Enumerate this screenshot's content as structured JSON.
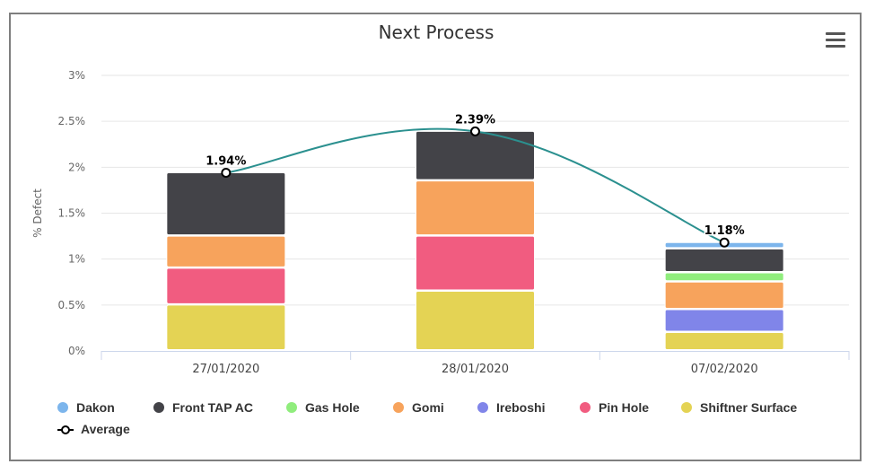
{
  "chart_data": {
    "type": "bar",
    "stacked": true,
    "title": "Next Process",
    "ylabel": "% Defect",
    "xlabel": "",
    "categories": [
      "27/01/2020",
      "28/01/2020",
      "07/02/2020"
    ],
    "y_ticks": [
      "0%",
      "0.5%",
      "1%",
      "1.5%",
      "2%",
      "2.5%",
      "3%"
    ],
    "ylim": [
      0,
      3
    ],
    "grid": true,
    "series": [
      {
        "name": "Shiftner Surface",
        "color": "#e4d354",
        "values": [
          0.5,
          0.65,
          0.2
        ]
      },
      {
        "name": "Ireboshi",
        "color": "#8085e9",
        "values": [
          0,
          0,
          0.25
        ]
      },
      {
        "name": "Pin Hole",
        "color": "#f15c80",
        "values": [
          0.4,
          0.6,
          0
        ]
      },
      {
        "name": "Gomi",
        "color": "#f7a35c",
        "values": [
          0.35,
          0.6,
          0.3
        ]
      },
      {
        "name": "Gas Hole",
        "color": "#90ed7d",
        "values": [
          0,
          0,
          0.1
        ]
      },
      {
        "name": "Front TAP AC",
        "color": "#434348",
        "values": [
          0.69,
          0.54,
          0.26
        ]
      },
      {
        "name": "Dakon",
        "color": "#7cb5ec",
        "values": [
          0,
          0,
          0.07
        ]
      }
    ],
    "line_series": {
      "name": "Average",
      "color": "#2b908f",
      "values": [
        1.94,
        2.39,
        1.18
      ],
      "labels": [
        "1.94%",
        "2.39%",
        "1.18%"
      ]
    },
    "legend": {
      "placement": "bottom-left",
      "order": [
        "Dakon",
        "Front TAP AC",
        "Gas Hole",
        "Gomi",
        "Ireboshi",
        "Pin Hole",
        "Shiftner Surface",
        "Average"
      ]
    }
  },
  "menu": {
    "icon": "hamburger-menu-icon"
  }
}
